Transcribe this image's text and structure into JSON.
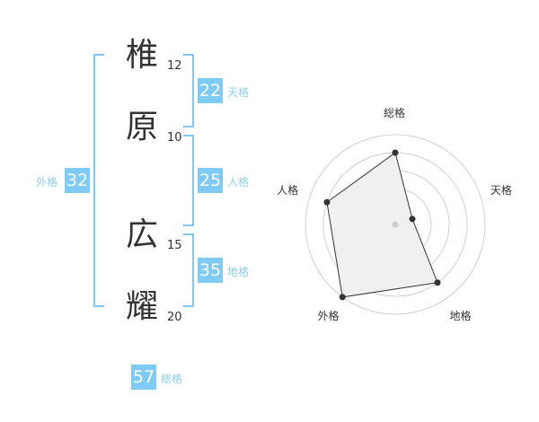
{
  "name": {
    "chars": [
      {
        "char": "椎",
        "strokes": "12"
      },
      {
        "char": "原",
        "strokes": "10"
      },
      {
        "char": "広",
        "strokes": "15"
      },
      {
        "char": "耀",
        "strokes": "20"
      }
    ]
  },
  "scores": {
    "tenkaku": {
      "value": "22",
      "label": "天格"
    },
    "jinkaku": {
      "value": "25",
      "label": "人格"
    },
    "chikaku": {
      "value": "35",
      "label": "地格"
    },
    "gaikaku": {
      "value": "32",
      "label": "外格"
    },
    "soukaku": {
      "value": "57",
      "label": "総格"
    }
  },
  "colors": {
    "accent": "#7fcbf5",
    "radar_fill": "#f0f0f0",
    "radar_line": "#333333"
  },
  "chart_data": {
    "type": "radar",
    "axes": [
      "総格",
      "天格",
      "地格",
      "外格",
      "人格"
    ],
    "values": [
      4,
      1,
      4,
      5,
      4
    ],
    "range": [
      0,
      5
    ],
    "rings": 5
  }
}
